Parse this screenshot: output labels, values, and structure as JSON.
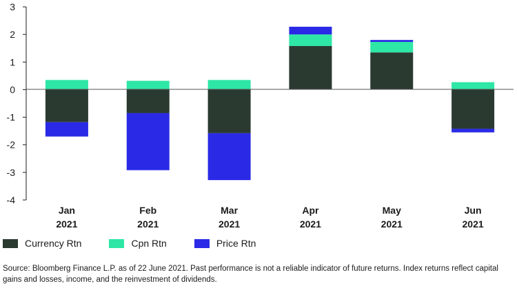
{
  "chart_data": {
    "type": "bar",
    "stacked": true,
    "categories": [
      {
        "line1": "Jan",
        "line2": "2021"
      },
      {
        "line1": "Feb",
        "line2": "2021"
      },
      {
        "line1": "Mar",
        "line2": "2021"
      },
      {
        "line1": "Apr",
        "line2": "2021"
      },
      {
        "line1": "May",
        "line2": "2021"
      },
      {
        "line1": "Jun",
        "line2": "2021"
      }
    ],
    "series": [
      {
        "name": "Currency Rtn",
        "color": "#2a3a31",
        "values": [
          -1.18,
          -0.85,
          -1.58,
          1.58,
          1.35,
          -1.42
        ]
      },
      {
        "name": "Cpn Rtn",
        "color": "#2ee6a6",
        "values": [
          0.35,
          0.32,
          0.35,
          0.42,
          0.38,
          0.27
        ]
      },
      {
        "name": "Price Rtn",
        "color": "#2a2ae6",
        "values": [
          -0.52,
          -2.07,
          -1.7,
          0.28,
          0.07,
          -0.13
        ]
      }
    ],
    "yticks": [
      "3",
      "2",
      "1",
      "0",
      "-1",
      "-2",
      "-3",
      "-4"
    ],
    "ylim": [
      -4,
      3
    ],
    "legend_position": "bottom-left",
    "grid": false
  },
  "source_note": "Source: Bloomberg Finance L.P. as of 22 June 2021. Past performance is not a reliable indicator of future returns. Index returns reflect capital gains and losses, income, and the reinvestment of dividends."
}
